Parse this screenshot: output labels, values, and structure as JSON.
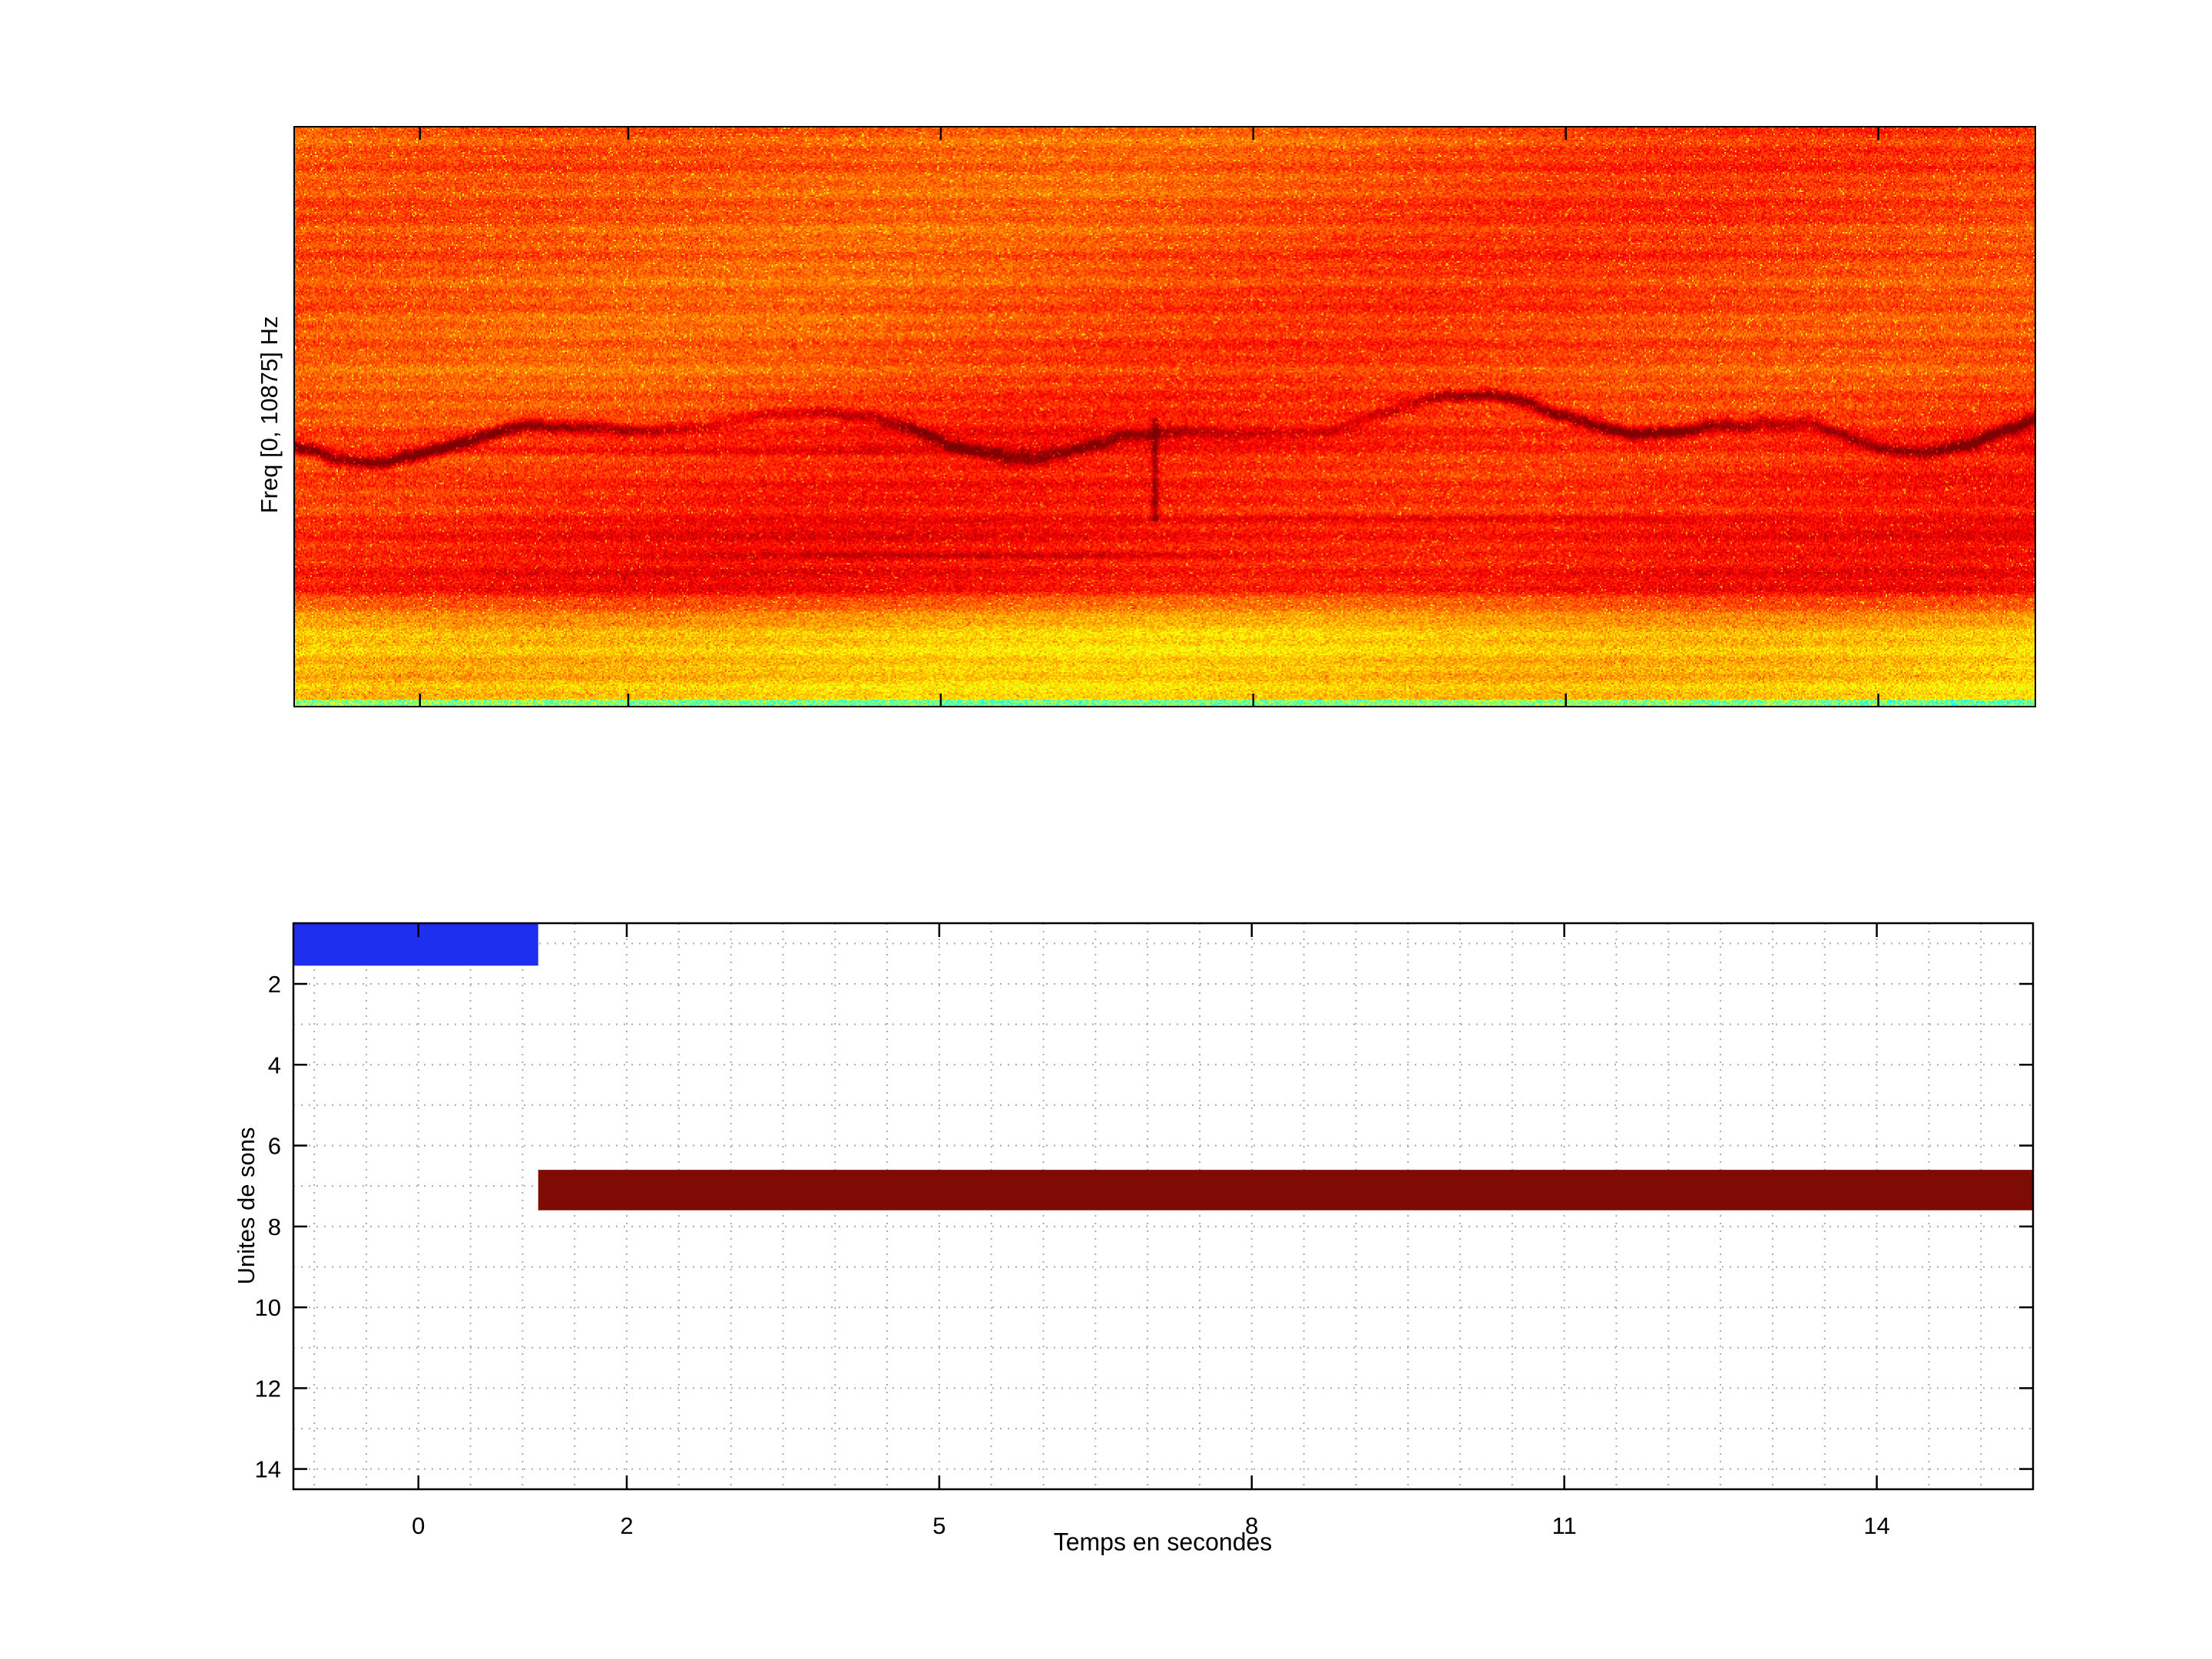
{
  "figure": {
    "background": "#ffffff"
  },
  "chart_data": [
    {
      "type": "heatmap",
      "subtype": "spectrogram",
      "title": "",
      "xlabel": "",
      "ylabel": "Freq [0, 10875] Hz",
      "freq_range_hz": [
        0,
        10875
      ],
      "colormap": "jet",
      "time_range_s": [
        -1.2,
        15.5
      ],
      "xticks": [
        0,
        2,
        5,
        8,
        11,
        14
      ],
      "features": {
        "body_jet_value": 0.795,
        "lower_body_jet_value": 0.845,
        "dark_wavy_harmonic_line_frac": 0.52,
        "dark_streak_fracs": [
          0.56,
          0.6,
          0.675,
          0.74
        ],
        "vertical_glitch": {
          "x_frac": 0.494,
          "y_from_frac": 0.5,
          "y_to_frac": 0.68
        },
        "yellow_band_frac": [
          0.86,
          0.987
        ],
        "green_bottom_band_frac": [
          0.987,
          1.0
        ],
        "yellow_band_jet_value": 0.665,
        "green_band_jet_value": 0.5
      }
    },
    {
      "type": "bar",
      "subtype": "gantt",
      "title": "",
      "xlabel": "Temps en secondes",
      "ylabel": "Unites de sons",
      "xlim": [
        -1.2,
        15.5
      ],
      "ylim": [
        0.5,
        14.5
      ],
      "xticks": [
        0,
        2,
        5,
        8,
        11,
        14
      ],
      "yticks": [
        2,
        4,
        6,
        8,
        10,
        12,
        14
      ],
      "grid": {
        "minor_x_step": 0.5,
        "minor_y_step": 1,
        "style": "dotted",
        "color": "#aaaaaa"
      },
      "segments": [
        {
          "unit": 1,
          "t_start": -1.2,
          "t_end": 1.15,
          "y_span": [
            0.5,
            1.55
          ],
          "color": "#1e2ff0"
        },
        {
          "unit": 7,
          "t_start": 1.15,
          "t_end": 15.5,
          "y_span": [
            6.6,
            7.6
          ],
          "color": "#7e0c04"
        }
      ]
    }
  ]
}
